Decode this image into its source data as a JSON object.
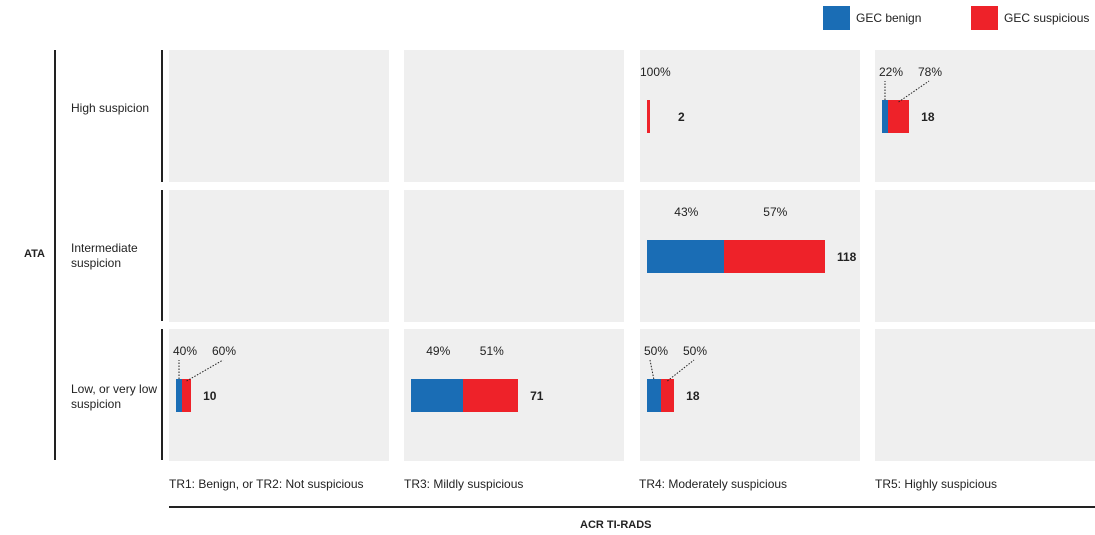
{
  "legend": [
    {
      "label": "GEC benign",
      "color": "#1a6db5"
    },
    {
      "label": "GEC suspicious",
      "color": "#ee2229"
    }
  ],
  "y_axis_title": "ATA",
  "x_axis_title": "ACR TI-RADS",
  "rows": [
    {
      "label": "High suspicion"
    },
    {
      "label": "Intermediate suspicion"
    },
    {
      "label": "Low, or very low suspicion"
    }
  ],
  "columns": [
    {
      "label": "TR1: Benign, or TR2: Not suspicious"
    },
    {
      "label": "TR3: Mildly suspicious"
    },
    {
      "label": "TR4: Moderately suspicious"
    },
    {
      "label": "TR5: Highly suspicious"
    }
  ],
  "chart_data": {
    "type": "bar",
    "orientation": "horizontal-stacked-grid",
    "row_axis": "ATA",
    "column_axis": "ACR TI-RADS",
    "series": [
      {
        "name": "GEC benign",
        "color": "#1a6db5"
      },
      {
        "name": "GEC suspicious",
        "color": "#ee2229"
      }
    ],
    "cells": [
      {
        "row": 0,
        "col": 2,
        "total": 2,
        "benign_pct": "",
        "suspicious_pct": "100%",
        "benign": 0,
        "suspicious": 100
      },
      {
        "row": 0,
        "col": 3,
        "total": 18,
        "benign_pct": "22%",
        "suspicious_pct": "78%",
        "benign": 22,
        "suspicious": 78
      },
      {
        "row": 1,
        "col": 2,
        "total": 118,
        "benign_pct": "43%",
        "suspicious_pct": "57%",
        "benign": 43,
        "suspicious": 57
      },
      {
        "row": 2,
        "col": 0,
        "total": 10,
        "benign_pct": "40%",
        "suspicious_pct": "60%",
        "benign": 40,
        "suspicious": 60
      },
      {
        "row": 2,
        "col": 1,
        "total": 71,
        "benign_pct": "49%",
        "suspicious_pct": "51%",
        "benign": 49,
        "suspicious": 51
      },
      {
        "row": 2,
        "col": 2,
        "total": 18,
        "benign_pct": "50%",
        "suspicious_pct": "50%",
        "benign": 50,
        "suspicious": 50
      }
    ]
  }
}
